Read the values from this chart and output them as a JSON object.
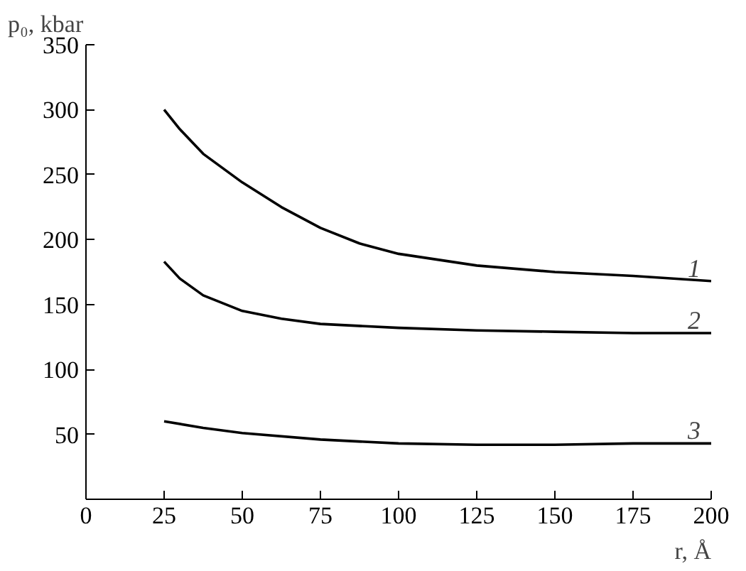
{
  "chart_data": {
    "type": "line",
    "xlabel": "r, Å",
    "ylabel": "p₀, kbar",
    "xlim": [
      0,
      200
    ],
    "ylim": [
      0,
      350
    ],
    "xticks": [
      0,
      25,
      50,
      75,
      100,
      125,
      150,
      175,
      200
    ],
    "yticks": [
      {
        "value": 0,
        "label": null
      },
      50,
      100,
      150,
      200,
      250,
      300,
      350
    ],
    "grid": false,
    "line_style": "solid",
    "marker": "none",
    "series": [
      {
        "name": "1",
        "color": "#000000",
        "x": [
          25,
          30,
          37.5,
          50,
          62.5,
          75,
          87.5,
          100,
          125,
          150,
          175,
          200
        ],
        "values": [
          300,
          285,
          266,
          244,
          225,
          209,
          197,
          189,
          180,
          175,
          172,
          168
        ]
      },
      {
        "name": "2",
        "color": "#000000",
        "x": [
          25,
          30,
          37.5,
          50,
          62.5,
          75,
          100,
          125,
          150,
          175,
          200
        ],
        "values": [
          183,
          170,
          157,
          145,
          139,
          135,
          132,
          130,
          129,
          128,
          128
        ]
      },
      {
        "name": "3",
        "color": "#000000",
        "x": [
          25,
          37.5,
          50,
          75,
          100,
          125,
          150,
          175,
          200
        ],
        "values": [
          60,
          55,
          51,
          46,
          43,
          42,
          42,
          43,
          43
        ]
      }
    ]
  }
}
